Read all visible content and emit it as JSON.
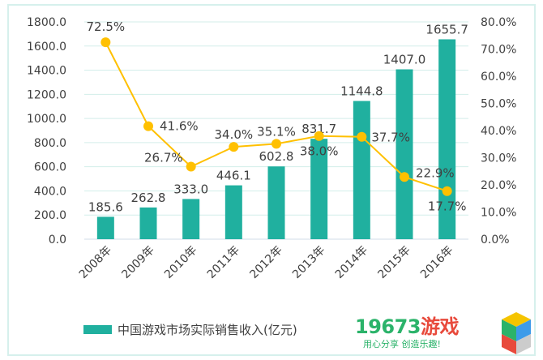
{
  "chart_data": {
    "type": "bar+line",
    "categories": [
      "2008年",
      "2009年",
      "2010年",
      "2011年",
      "2012年",
      "2013年",
      "2014年",
      "2015年",
      "2016年"
    ],
    "series": [
      {
        "name": "中国游戏市场实际销售收入(亿元)",
        "type": "bar",
        "axis": "left",
        "color": "#20b09f",
        "values": [
          185.6,
          262.8,
          333.0,
          446.1,
          602.8,
          831.7,
          1144.8,
          1407.0,
          1655.7
        ],
        "labels": [
          "185.6",
          "262.8",
          "333.0",
          "446.1",
          "602.8",
          "831.7",
          "1144.8",
          "1407.0",
          "1655.7"
        ]
      },
      {
        "type": "line",
        "axis": "right",
        "color": "#ffc000",
        "values": [
          72.5,
          41.6,
          26.7,
          34.0,
          35.1,
          38.0,
          37.7,
          22.9,
          17.7
        ],
        "labels": [
          "72.5%",
          "41.6%",
          "26.7%",
          "34.0%",
          "35.1%",
          "38.0%",
          "37.7%",
          "22.9%",
          "17.7%"
        ]
      }
    ],
    "left_axis": {
      "min": 0,
      "max": 1800,
      "step": 200,
      "tick_labels": [
        "0.0",
        "200.0",
        "400.0",
        "600.0",
        "800.0",
        "1000.0",
        "1200.0",
        "1400.0",
        "1600.0",
        "1800.0"
      ]
    },
    "right_axis": {
      "min": 0,
      "max": 80,
      "step": 10,
      "tick_labels": [
        "0.0%",
        "10.0%",
        "20.0%",
        "30.0%",
        "40.0%",
        "50.0%",
        "60.0%",
        "70.0%",
        "80.0%"
      ]
    },
    "grid": true,
    "legend_position": "bottom"
  },
  "legend": {
    "label": "中国游戏市场实际销售收入(亿元)",
    "color": "#20b09f"
  },
  "watermark": {
    "text": "19673游戏",
    "tagline": "用心分享 创造乐趣!"
  }
}
